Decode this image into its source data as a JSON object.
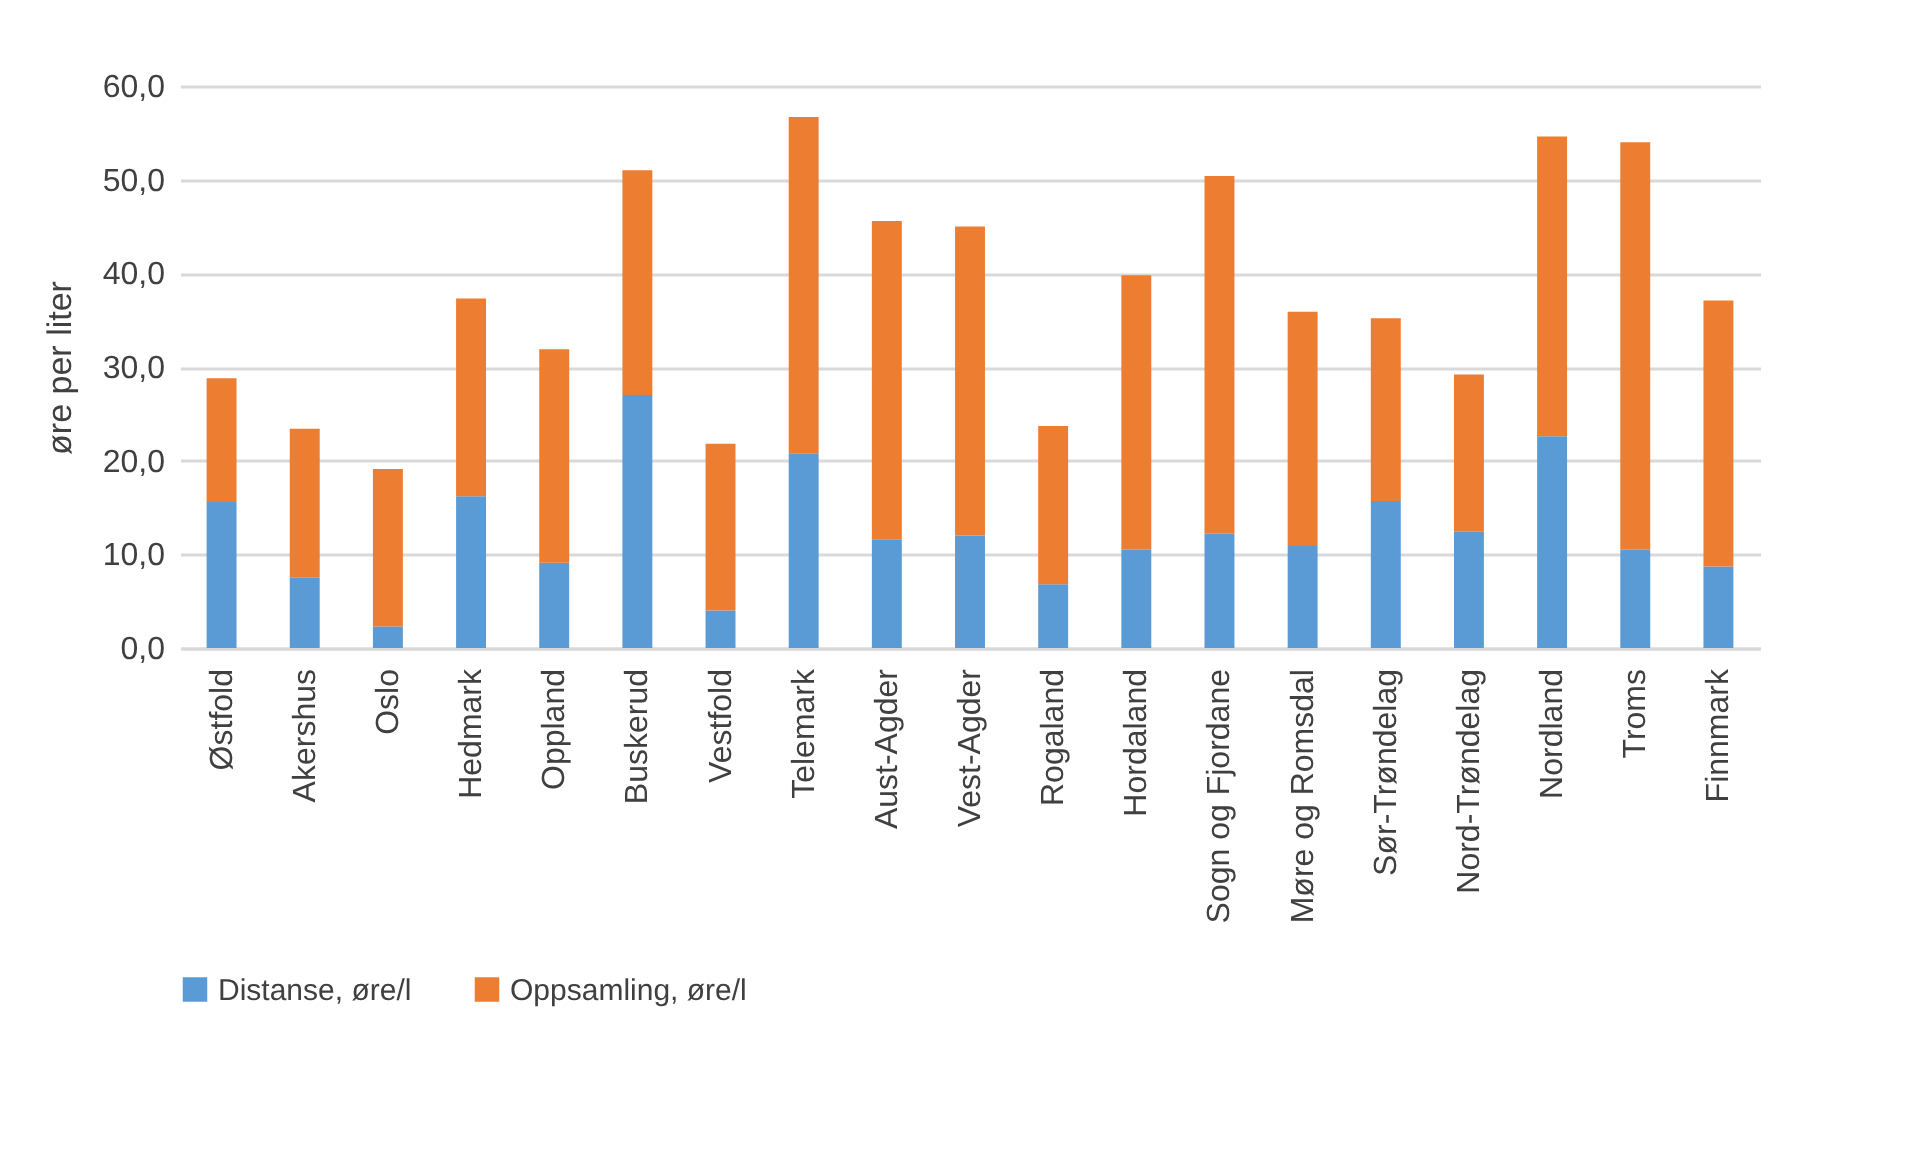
{
  "chart_data": {
    "type": "bar",
    "stacked": true,
    "ylabel": "øre per liter",
    "categories": [
      "Østfold",
      "Akershus",
      "Oslo",
      "Hedmark",
      "Oppland",
      "Buskerud",
      "Vestfold",
      "Telemark",
      "Aust-Agder",
      "Vest-Agder",
      "Rogaland",
      "Hordaland",
      "Sogn og Fjordane",
      "Møre og Romsdal",
      "Sør-Trøndelag",
      "Nord-Trøndelag",
      "Nordland",
      "Troms",
      "Finnmark"
    ],
    "series": [
      {
        "name": "Distanse, øre/l",
        "color": "#5b9bd5",
        "values": [
          15.6,
          7.5,
          2.3,
          16.2,
          9.1,
          27.0,
          4.0,
          20.8,
          11.6,
          12.0,
          6.8,
          10.5,
          12.2,
          10.9,
          15.7,
          12.4,
          22.6,
          10.5,
          8.7
        ]
      },
      {
        "name": "Oppsamling, øre/l",
        "color": "#ed7d31",
        "values": [
          13.2,
          15.9,
          16.8,
          21.1,
          22.8,
          24.0,
          17.8,
          35.9,
          34.0,
          33.0,
          16.9,
          29.3,
          38.2,
          25.0,
          19.5,
          16.8,
          32.0,
          43.5,
          28.4
        ]
      }
    ],
    "ylim": [
      0,
      60
    ],
    "yticks": [
      {
        "value": 0,
        "label": "0,0"
      },
      {
        "value": 10,
        "label": "10,0"
      },
      {
        "value": 20,
        "label": "20,0"
      },
      {
        "value": 30,
        "label": "30,0"
      },
      {
        "value": 40,
        "label": "40,0"
      },
      {
        "value": 50,
        "label": "50,0"
      },
      {
        "value": 60,
        "label": "60,0"
      }
    ],
    "grid": "y",
    "legend": "bottom"
  }
}
